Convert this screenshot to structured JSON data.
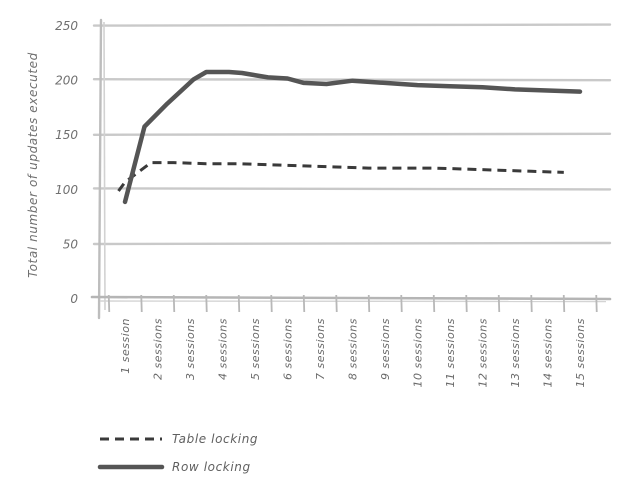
{
  "chart_data": {
    "type": "line",
    "title": "",
    "xlabel": "",
    "ylabel": "Total number of updates executed",
    "categories": [
      "1 session",
      "2 sessions",
      "3 sessions",
      "4 sessions",
      "5 sessions",
      "6 sessions",
      "7 sessions",
      "8 sessions",
      "9 sessions",
      "10 sessions",
      "11 sessions",
      "12 sessions",
      "13 sessions",
      "14 sessions",
      "15 sessions"
    ],
    "ylim": [
      0,
      250
    ],
    "yticks": [
      0,
      50,
      100,
      150,
      200,
      250
    ],
    "grid": true,
    "legend_position": "bottom-left",
    "series": [
      {
        "name": "Table locking",
        "style": "dashed",
        "color": "#3a3a3a",
        "x": [
          0.8,
          1,
          1.8,
          2.5,
          3.5,
          4.5,
          5.5,
          6.5,
          7.5,
          8.5,
          9.5,
          10.5,
          11.5,
          12.5,
          13.5,
          14.5
        ],
        "values": [
          98,
          106,
          124,
          124,
          123,
          123,
          122,
          121,
          120,
          119,
          119,
          119,
          118,
          117,
          116,
          115
        ]
      },
      {
        "name": "Row locking",
        "style": "solid",
        "color": "#555555",
        "x": [
          1,
          1.6,
          2.3,
          3.1,
          3.5,
          4.2,
          4.6,
          5.4,
          6,
          6.5,
          7.2,
          8,
          9,
          10,
          11,
          12,
          13,
          14,
          15
        ],
        "values": [
          88,
          157,
          178,
          200,
          207,
          207,
          206,
          202,
          201,
          197,
          196,
          199,
          197,
          195,
          194,
          193,
          191,
          190,
          189
        ]
      }
    ]
  }
}
